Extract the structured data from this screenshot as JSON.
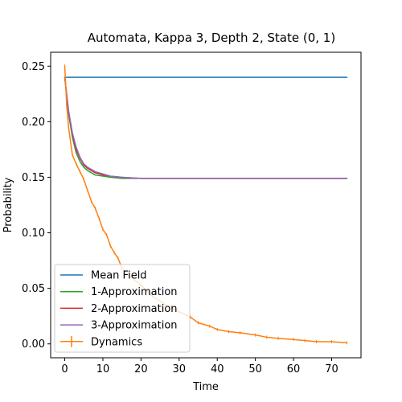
{
  "chart_data": {
    "type": "line",
    "title": "Automata, Kappa 3, Depth 2, State (0, 1)",
    "xlabel": "Time",
    "ylabel": "Probability",
    "xlim": [
      -3.7,
      77.7
    ],
    "ylim": [
      -0.0125,
      0.2625
    ],
    "xticks": [
      0,
      10,
      20,
      30,
      40,
      50,
      60,
      70
    ],
    "yticks": [
      0.0,
      0.05,
      0.1,
      0.15,
      0.2,
      0.25
    ],
    "grid": false,
    "legend_position": "lower-left",
    "x": [
      0,
      1,
      2,
      3,
      4,
      5,
      6,
      8,
      10,
      12,
      15,
      20,
      25,
      30,
      35,
      40,
      45,
      50,
      55,
      60,
      65,
      70,
      74
    ],
    "series": [
      {
        "name": "Mean Field",
        "color": "#1f77b4",
        "values": [
          0.24,
          0.24,
          0.24,
          0.24,
          0.24,
          0.24,
          0.24,
          0.24,
          0.24,
          0.24,
          0.24,
          0.24,
          0.24,
          0.24,
          0.24,
          0.24,
          0.24,
          0.24,
          0.24,
          0.24,
          0.24,
          0.24,
          0.24
        ]
      },
      {
        "name": "1-Approximation",
        "color": "#2ca02c",
        "values": [
          0.24,
          0.207,
          0.186,
          0.172,
          0.164,
          0.159,
          0.156,
          0.152,
          0.151,
          0.15,
          0.149,
          0.149,
          0.149,
          0.149,
          0.149,
          0.149,
          0.149,
          0.149,
          0.149,
          0.149,
          0.149,
          0.149,
          0.149
        ]
      },
      {
        "name": "2-Approximation",
        "color": "#d62728",
        "values": [
          0.24,
          0.209,
          0.189,
          0.175,
          0.167,
          0.161,
          0.158,
          0.154,
          0.152,
          0.151,
          0.15,
          0.149,
          0.149,
          0.149,
          0.149,
          0.149,
          0.149,
          0.149,
          0.149,
          0.149,
          0.149,
          0.149,
          0.149
        ]
      },
      {
        "name": "3-Approximation",
        "color": "#9467bd",
        "values": [
          0.24,
          0.21,
          0.19,
          0.177,
          0.168,
          0.162,
          0.159,
          0.155,
          0.153,
          0.151,
          0.15,
          0.149,
          0.149,
          0.149,
          0.149,
          0.149,
          0.149,
          0.149,
          0.149,
          0.149,
          0.149,
          0.149,
          0.149
        ]
      },
      {
        "name": "Dynamics",
        "color": "#ff7f0e",
        "style": "errorbar",
        "x": [
          0,
          0.5,
          1,
          2,
          3,
          4,
          5,
          6,
          7,
          8,
          9,
          10,
          11,
          12,
          13,
          14,
          15,
          17,
          20,
          23,
          26,
          30,
          33,
          35,
          38,
          40,
          43,
          46,
          50,
          53,
          56,
          60,
          63,
          66,
          70,
          74
        ],
        "values": [
          0.25,
          0.215,
          0.195,
          0.17,
          0.162,
          0.155,
          0.148,
          0.138,
          0.128,
          0.122,
          0.113,
          0.103,
          0.098,
          0.088,
          0.082,
          0.077,
          0.068,
          0.061,
          0.053,
          0.043,
          0.036,
          0.029,
          0.024,
          0.019,
          0.016,
          0.013,
          0.011,
          0.01,
          0.008,
          0.006,
          0.005,
          0.004,
          0.003,
          0.002,
          0.002,
          0.001
        ]
      }
    ]
  }
}
